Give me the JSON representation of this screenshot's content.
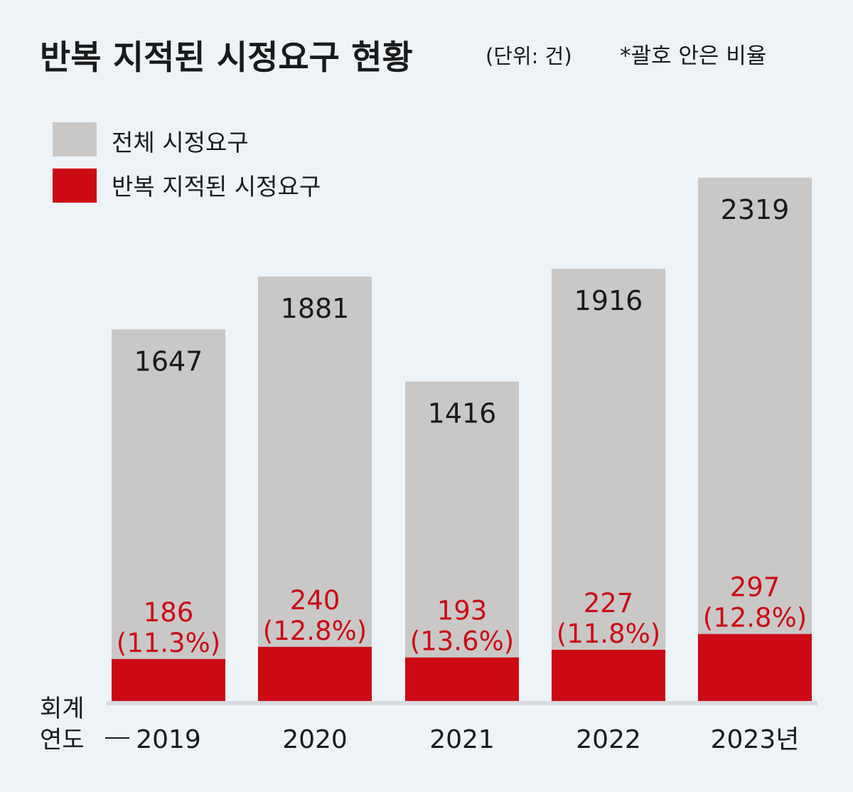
{
  "chart_data": {
    "type": "bar",
    "title": "반복 지적된 시정요구 현황",
    "subtitle": "(단위: 건)",
    "note": "*괄호 안은 비율",
    "xlabel_line1": "회계",
    "xlabel_line2": "연도",
    "categories": [
      "2019",
      "2020",
      "2021",
      "2022",
      "2023년"
    ],
    "series": [
      {
        "name": "전체 시정요구",
        "color": "#c9c8c7",
        "values": [
          1647,
          1881,
          1416,
          1916,
          2319
        ],
        "labels": [
          "1647",
          "1881",
          "1416",
          "1916",
          "2319"
        ]
      },
      {
        "name": "반복 지적된 시정요구",
        "color": "#cc0a14",
        "values": [
          186,
          240,
          193,
          227,
          297
        ],
        "labels": [
          "186",
          "240",
          "193",
          "227",
          "297"
        ],
        "ratios": [
          "(11.3%)",
          "(12.8%)",
          "(13.6%)",
          "(11.8%)",
          "(12.8%)"
        ]
      }
    ],
    "ylim": [
      0,
      2319
    ],
    "grid": false,
    "legend_position": "top-left"
  },
  "colors": {
    "background": "#eef3f7",
    "text": "#1a1a1a",
    "highlight": "#cc0a14"
  }
}
